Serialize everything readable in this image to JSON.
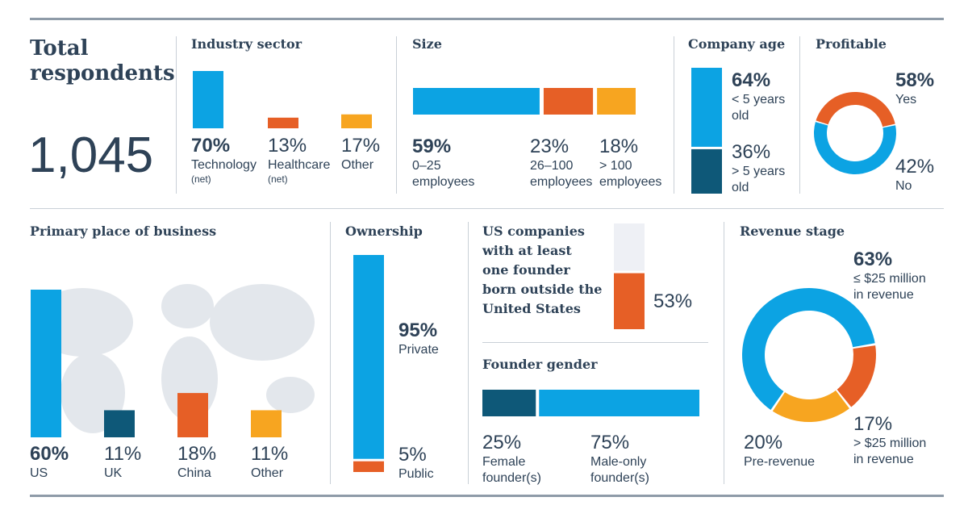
{
  "colors": {
    "blue": "#0ca3e3",
    "navy": "#0e5878",
    "orange": "#e65f26",
    "yellow": "#f7a520",
    "light": "#eef0f5",
    "map": "#e3e7ec"
  },
  "total": {
    "title_line1": "Total",
    "title_line2": "respondents",
    "value": "1,045"
  },
  "industry": {
    "title": "Industry sector",
    "items": [
      {
        "pct": "70%",
        "label": "Technology",
        "sub": "(net)",
        "value": 70,
        "color": "blue"
      },
      {
        "pct": "13%",
        "label": "Healthcare",
        "sub": "(net)",
        "value": 13,
        "color": "orange"
      },
      {
        "pct": "17%",
        "label": "Other",
        "sub": "",
        "value": 17,
        "color": "yellow"
      }
    ]
  },
  "size": {
    "title": "Size",
    "items": [
      {
        "pct": "59%",
        "line1": "0–25",
        "line2": "employees",
        "value": 59,
        "color": "blue"
      },
      {
        "pct": "23%",
        "line1": "26–100",
        "line2": "employees",
        "value": 23,
        "color": "orange"
      },
      {
        "pct": "18%",
        "line1": "> 100",
        "line2": "employees",
        "value": 18,
        "color": "yellow"
      }
    ]
  },
  "age": {
    "title": "Company age",
    "items": [
      {
        "pct": "64%",
        "line1": "< 5 years",
        "line2": "old",
        "value": 64,
        "color": "blue"
      },
      {
        "pct": "36%",
        "line1": "> 5 years",
        "line2": "old",
        "value": 36,
        "color": "navy"
      }
    ]
  },
  "profitable": {
    "title": "Profitable",
    "items": [
      {
        "pct": "58%",
        "label": "Yes",
        "value": 58,
        "color": "blue"
      },
      {
        "pct": "42%",
        "label": "No",
        "value": 42,
        "color": "orange"
      }
    ]
  },
  "place": {
    "title": "Primary place of business",
    "items": [
      {
        "pct": "60%",
        "label": "US",
        "value": 60,
        "color": "blue"
      },
      {
        "pct": "11%",
        "label": "UK",
        "value": 11,
        "color": "navy"
      },
      {
        "pct": "18%",
        "label": "China",
        "value": 18,
        "color": "orange"
      },
      {
        "pct": "11%",
        "label": "Other",
        "value": 11,
        "color": "yellow"
      }
    ]
  },
  "ownership": {
    "title": "Ownership",
    "items": [
      {
        "pct": "95%",
        "label": "Private",
        "value": 95,
        "color": "blue"
      },
      {
        "pct": "5%",
        "label": "Public",
        "value": 5,
        "color": "orange"
      }
    ]
  },
  "founder_born": {
    "title_lines": [
      "US companies",
      "with at least",
      "one founder",
      "born outside the",
      "United States"
    ],
    "pct": "53%",
    "value": 53
  },
  "gender": {
    "title": "Founder gender",
    "items": [
      {
        "pct": "25%",
        "line1": "Female",
        "line2": "founder(s)",
        "value": 25,
        "color": "navy"
      },
      {
        "pct": "75%",
        "line1": "Male-only",
        "line2": "founder(s)",
        "value": 75,
        "color": "blue"
      }
    ]
  },
  "revenue": {
    "title": "Revenue stage",
    "items": [
      {
        "pct": "63%",
        "line1": "≤ $25 million",
        "line2": "in revenue",
        "value": 63,
        "color": "blue"
      },
      {
        "pct": "17%",
        "line1": "> $25 million",
        "line2": "in revenue",
        "value": 17,
        "color": "orange"
      },
      {
        "pct": "20%",
        "line1": "Pre-revenue",
        "line2": "",
        "value": 20,
        "color": "yellow"
      }
    ]
  },
  "chart_data": [
    {
      "type": "bar",
      "title": "Industry sector",
      "categories": [
        "Technology (net)",
        "Healthcare (net)",
        "Other"
      ],
      "values": [
        70,
        13,
        17
      ],
      "unit": "%"
    },
    {
      "type": "bar",
      "title": "Size",
      "categories": [
        "0–25 employees",
        "26–100 employees",
        "> 100 employees"
      ],
      "values": [
        59,
        23,
        18
      ],
      "unit": "%"
    },
    {
      "type": "bar",
      "title": "Company age",
      "categories": [
        "< 5 years old",
        "> 5 years old"
      ],
      "values": [
        64,
        36
      ],
      "unit": "%"
    },
    {
      "type": "pie",
      "title": "Profitable",
      "categories": [
        "Yes",
        "No"
      ],
      "values": [
        58,
        42
      ],
      "unit": "%"
    },
    {
      "type": "bar",
      "title": "Primary place of business",
      "categories": [
        "US",
        "UK",
        "China",
        "Other"
      ],
      "values": [
        60,
        11,
        18,
        11
      ],
      "unit": "%"
    },
    {
      "type": "bar",
      "title": "Ownership",
      "categories": [
        "Private",
        "Public"
      ],
      "values": [
        95,
        5
      ],
      "unit": "%"
    },
    {
      "type": "bar",
      "title": "US companies with at least one founder born outside the United States",
      "categories": [
        ""
      ],
      "values": [
        53
      ],
      "unit": "%"
    },
    {
      "type": "bar",
      "title": "Founder gender",
      "categories": [
        "Female founder(s)",
        "Male-only founder(s)"
      ],
      "values": [
        25,
        75
      ],
      "unit": "%"
    },
    {
      "type": "pie",
      "title": "Revenue stage",
      "categories": [
        "≤ $25 million in revenue",
        "> $25 million in revenue",
        "Pre-revenue"
      ],
      "values": [
        63,
        17,
        20
      ],
      "unit": "%"
    }
  ]
}
